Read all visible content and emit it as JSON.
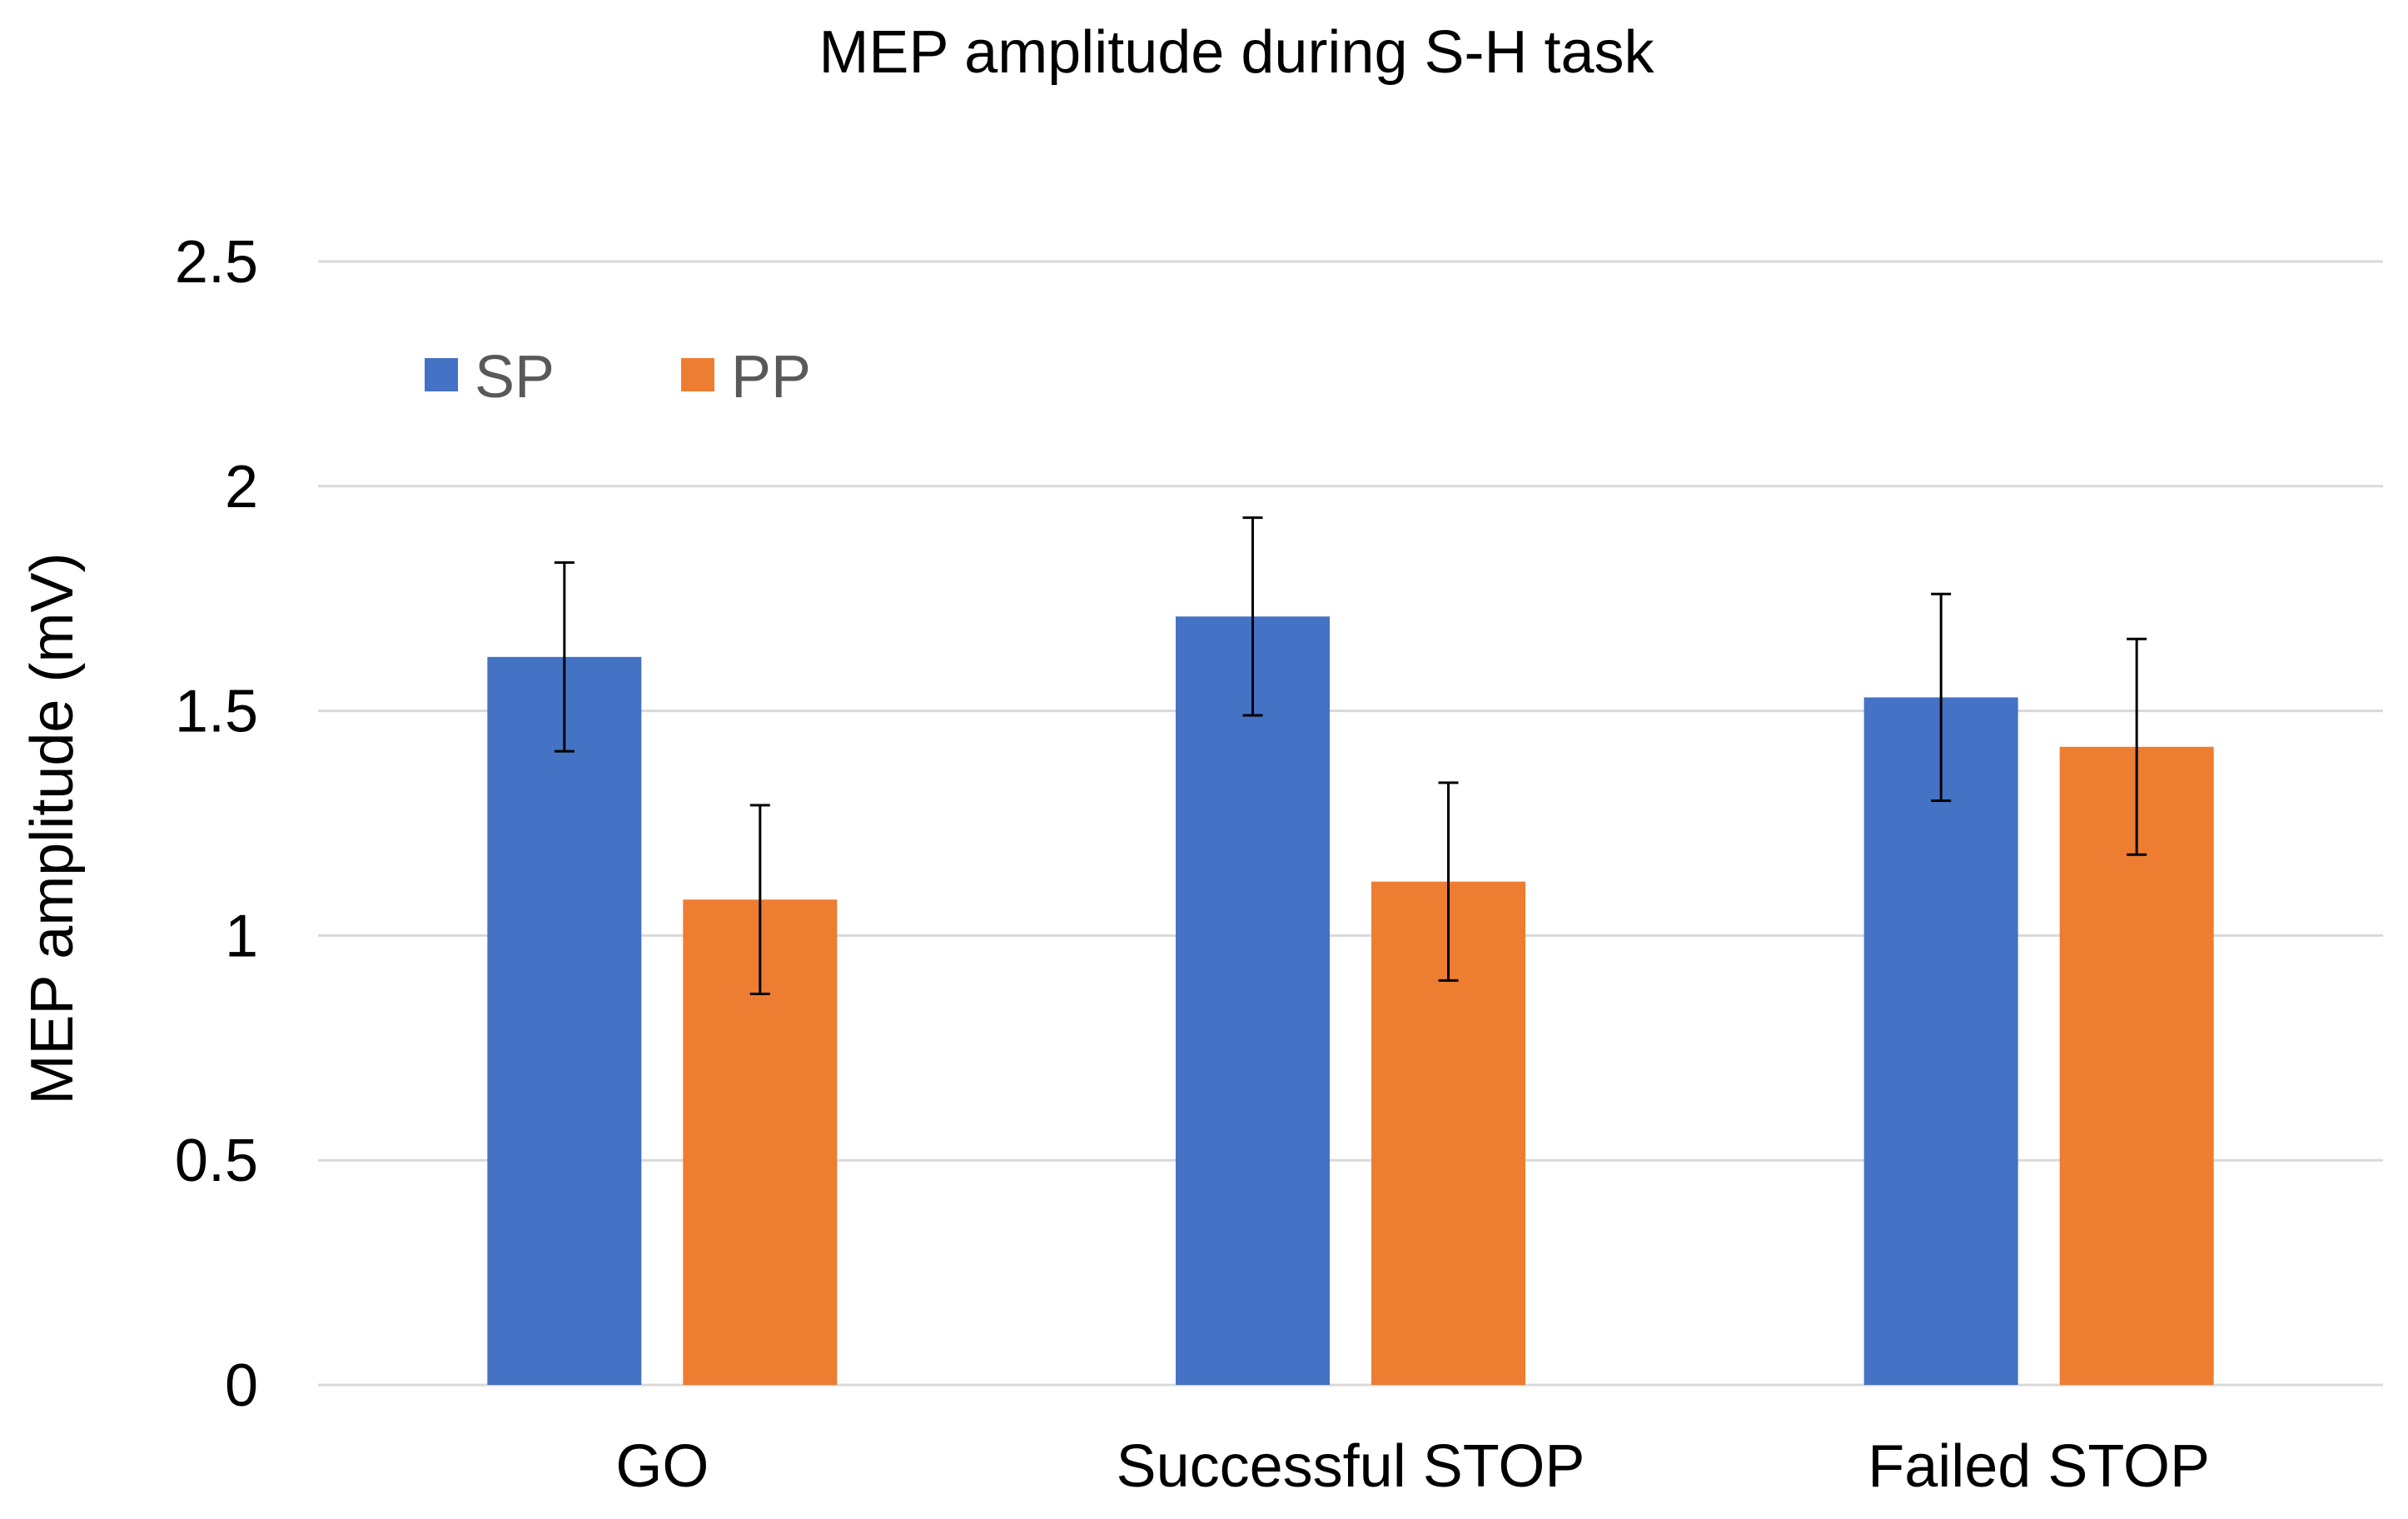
{
  "chart_data": {
    "type": "bar",
    "title": "MEP amplitude during S-H task",
    "xlabel": "",
    "ylabel": "MEP amplitude (mV)",
    "ylim": [
      0,
      2.5
    ],
    "yticks": [
      0,
      0.5,
      1,
      1.5,
      2,
      2.5
    ],
    "ytick_labels": [
      "0",
      "0.5",
      "1",
      "1.5",
      "2",
      "2.5"
    ],
    "grid": true,
    "legend_position": "top-left",
    "categories": [
      "GO",
      "Successful STOP",
      "Failed STOP"
    ],
    "series": [
      {
        "name": "SP",
        "color": "#4472c4",
        "values": [
          1.62,
          1.71,
          1.53
        ],
        "error": [
          0.21,
          0.22,
          0.23
        ]
      },
      {
        "name": "PP",
        "color": "#ed7d31",
        "values": [
          1.08,
          1.12,
          1.42
        ],
        "error": [
          0.21,
          0.22,
          0.24
        ]
      }
    ]
  }
}
